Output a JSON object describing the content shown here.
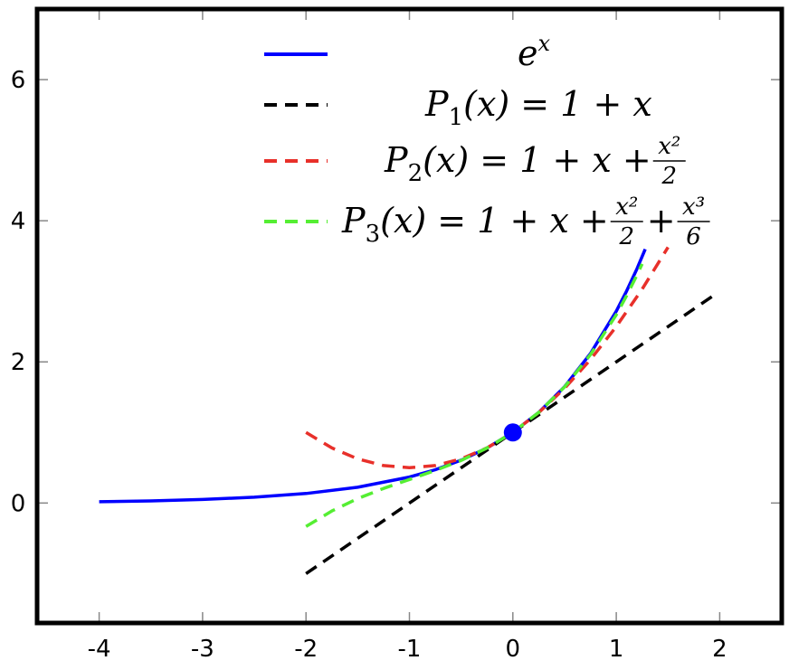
{
  "chart_data": {
    "type": "line",
    "xlim": [
      -4.6,
      2.6
    ],
    "ylim": [
      -1.7,
      7.0
    ],
    "grid": false,
    "legend_position": "top-right",
    "x_ticks": [
      {
        "value": -4,
        "label": "-4"
      },
      {
        "value": -3,
        "label": "-3"
      },
      {
        "value": -2,
        "label": "-2"
      },
      {
        "value": -1,
        "label": "-1"
      },
      {
        "value": 0,
        "label": "0"
      },
      {
        "value": 1,
        "label": "1"
      },
      {
        "value": 2,
        "label": "2"
      }
    ],
    "y_ticks": [
      {
        "value": 0,
        "label": "0"
      },
      {
        "value": 2,
        "label": "2"
      },
      {
        "value": 4,
        "label": "4"
      },
      {
        "value": 6,
        "label": "6"
      }
    ],
    "series": [
      {
        "name": "e^x",
        "color": "#0000ff",
        "dash": "solid",
        "x": [
          -4,
          -3.5,
          -3,
          -2.5,
          -2,
          -1.5,
          -1,
          -0.75,
          -0.5,
          -0.25,
          0,
          0.25,
          0.5,
          0.75,
          1,
          1.1,
          1.2,
          1.28
        ],
        "y": [
          0.018,
          0.03,
          0.05,
          0.082,
          0.135,
          0.223,
          0.368,
          0.472,
          0.607,
          0.779,
          1.0,
          1.284,
          1.649,
          2.117,
          2.718,
          3.004,
          3.32,
          3.597
        ]
      },
      {
        "name": "P_1(x) = 1 + x",
        "color": "#000000",
        "dash": "dashed",
        "x": [
          -2,
          1.95
        ],
        "y": [
          -1.0,
          2.95
        ]
      },
      {
        "name": "P_2(x) = 1 + x + x^2/2",
        "color": "#e8302a",
        "dash": "dashed",
        "x": [
          -2,
          -1.75,
          -1.5,
          -1.25,
          -1,
          -0.75,
          -0.5,
          -0.25,
          0,
          0.25,
          0.5,
          0.75,
          1,
          1.25,
          1.5
        ],
        "y": [
          1.0,
          0.781,
          0.625,
          0.531,
          0.5,
          0.531,
          0.625,
          0.781,
          1.0,
          1.281,
          1.625,
          2.031,
          2.5,
          3.031,
          3.625
        ]
      },
      {
        "name": "P_3(x) = 1 + x + x^2/2 + x^3/6",
        "color": "#55ee33",
        "dash": "dashed",
        "x": [
          -2,
          -1.75,
          -1.5,
          -1.25,
          -1,
          -0.75,
          -0.5,
          -0.25,
          0,
          0.25,
          0.5,
          0.75,
          1,
          1.1,
          1.2,
          1.25
        ],
        "y": [
          -0.333,
          -0.112,
          0.063,
          0.206,
          0.333,
          0.461,
          0.604,
          0.779,
          1.0,
          1.284,
          1.646,
          2.102,
          2.667,
          2.937,
          3.232,
          3.388
        ]
      }
    ],
    "marker": {
      "x": 0,
      "y": 1,
      "color": "#0000ff"
    },
    "legend": [
      {
        "base": "e",
        "sup": "x"
      },
      {
        "base": "P",
        "sub": "1",
        "body": "(x) = 1 + x"
      },
      {
        "base": "P",
        "sub": "2",
        "body": "(x) = 1 + x + ",
        "frac1_num": "x²",
        "frac1_den": "2"
      },
      {
        "base": "P",
        "sub": "3",
        "body": "(x) = 1 + x + ",
        "frac1_num": "x²",
        "frac1_den": "2",
        "plus": " + ",
        "frac2_num": "x³",
        "frac2_den": "6"
      }
    ]
  }
}
